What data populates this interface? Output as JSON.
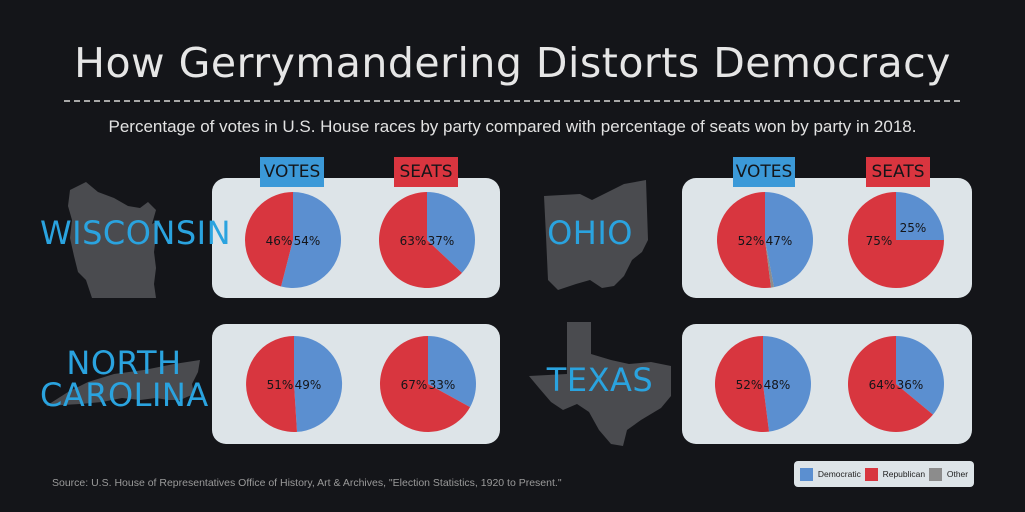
{
  "title": "How Gerrymandering Distorts Democracy",
  "subtitle": "Percentage of votes in U.S. House races by party compared with percentage of seats won by party in 2018.",
  "source": "Source: U.S. House of Representatives Office of History, Art & Archives, \"Election Statistics, 1920 to Present.\"",
  "labels": {
    "votes": "VOTES",
    "seats": "SEATS"
  },
  "colors": {
    "democratic": "#5b8fd0",
    "republican": "#d8363f",
    "other": "#8c8c8c",
    "state_name": "#2aa3df",
    "card": "#dde4e8"
  },
  "legend": [
    {
      "label": "Democratic",
      "color": "#5b8fd0"
    },
    {
      "label": "Republican",
      "color": "#d8363f"
    },
    {
      "label": "Other",
      "color": "#8c8c8c"
    }
  ],
  "states": [
    {
      "name_lines": [
        "WISCONSIN"
      ],
      "icon": "wisconsin-state-icon"
    },
    {
      "name_lines": [
        "OHIO"
      ],
      "icon": "ohio-state-icon"
    },
    {
      "name_lines": [
        "NORTH",
        "CAROLINA"
      ],
      "icon": "north-carolina-state-icon"
    },
    {
      "name_lines": [
        "TEXAS"
      ],
      "icon": "texas-state-icon"
    }
  ],
  "chart_data": [
    {
      "type": "pie",
      "title": "WISCONSIN VOTES",
      "categories": [
        "Democratic",
        "Republican",
        "Other"
      ],
      "values": [
        54,
        46,
        0
      ],
      "labels": [
        "54%",
        "46%",
        ""
      ]
    },
    {
      "type": "pie",
      "title": "WISCONSIN SEATS",
      "categories": [
        "Democratic",
        "Republican",
        "Other"
      ],
      "values": [
        37,
        63,
        0
      ],
      "labels": [
        "37%",
        "63%",
        ""
      ]
    },
    {
      "type": "pie",
      "title": "OHIO VOTES",
      "categories": [
        "Democratic",
        "Republican",
        "Other"
      ],
      "values": [
        47,
        52,
        1
      ],
      "labels": [
        "47%",
        "52%",
        ""
      ]
    },
    {
      "type": "pie",
      "title": "OHIO SEATS",
      "categories": [
        "Democratic",
        "Republican",
        "Other"
      ],
      "values": [
        25,
        75,
        0
      ],
      "labels": [
        "25%",
        "75%",
        ""
      ]
    },
    {
      "type": "pie",
      "title": "NORTH CAROLINA VOTES",
      "categories": [
        "Democratic",
        "Republican",
        "Other"
      ],
      "values": [
        49,
        51,
        0
      ],
      "labels": [
        "49%",
        "51%",
        ""
      ]
    },
    {
      "type": "pie",
      "title": "NORTH CAROLINA SEATS",
      "categories": [
        "Democratic",
        "Republican",
        "Other"
      ],
      "values": [
        33,
        67,
        0
      ],
      "labels": [
        "33%",
        "67%",
        ""
      ]
    },
    {
      "type": "pie",
      "title": "TEXAS VOTES",
      "categories": [
        "Democratic",
        "Republican",
        "Other"
      ],
      "values": [
        48,
        52,
        0
      ],
      "labels": [
        "48%",
        "52%",
        ""
      ]
    },
    {
      "type": "pie",
      "title": "TEXAS SEATS",
      "categories": [
        "Democratic",
        "Republican",
        "Other"
      ],
      "values": [
        36,
        64,
        0
      ],
      "labels": [
        "36%",
        "64%",
        ""
      ]
    }
  ]
}
